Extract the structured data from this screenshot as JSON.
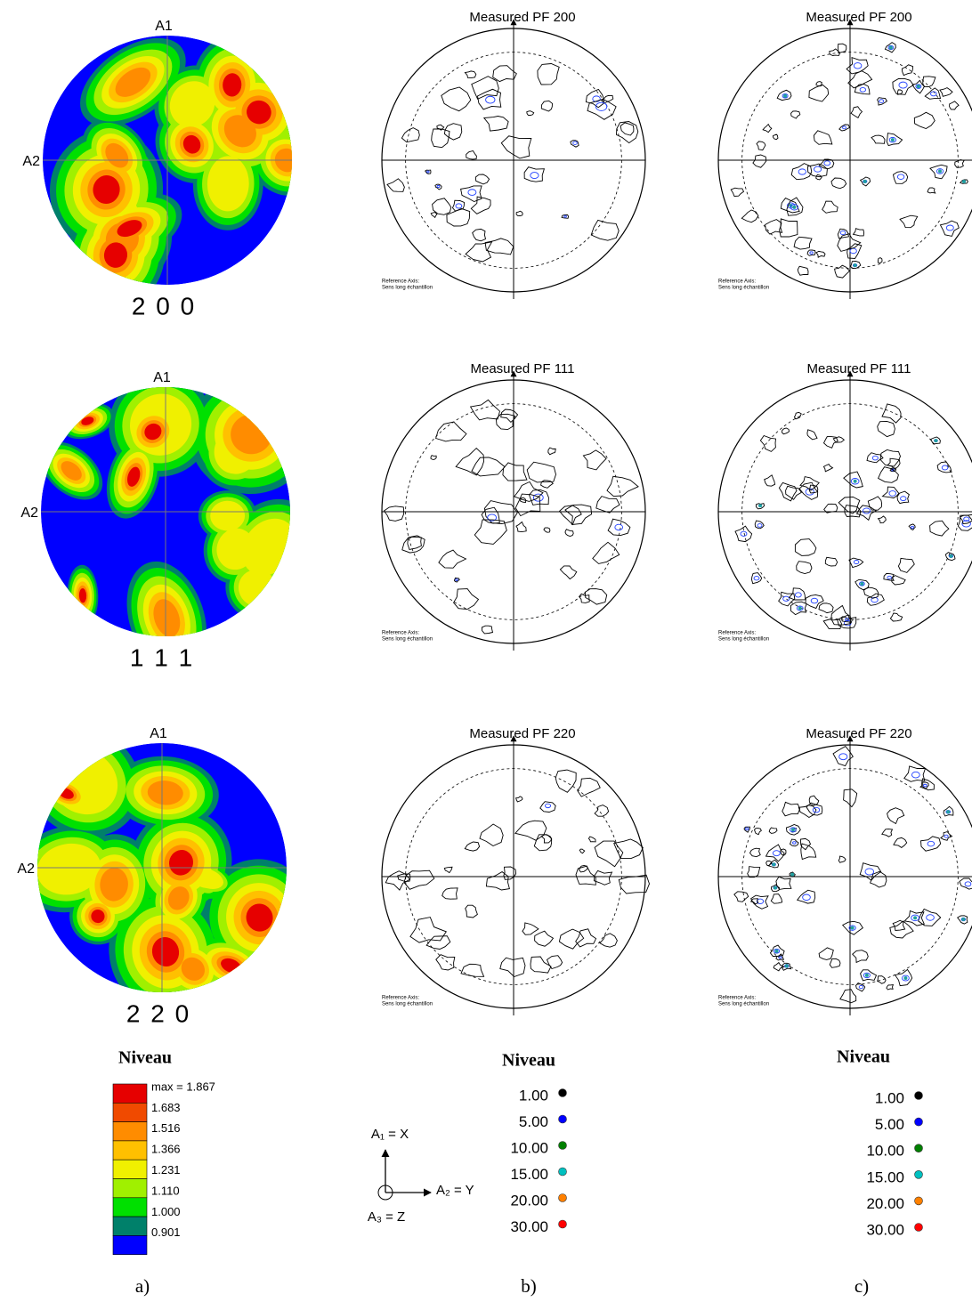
{
  "columns": [
    {
      "caption": "a)",
      "figures": [
        {
          "label": "2 0 0",
          "top_axis": "A1",
          "left_axis": "A2"
        },
        {
          "label": "1 1 1",
          "top_axis": "A1",
          "left_axis": "A2"
        },
        {
          "label": "2 2 0",
          "top_axis": "A1",
          "left_axis": "A2"
        }
      ],
      "legend": {
        "title": "Niveau",
        "levels": [
          "max = 1.867",
          "1.683",
          "1.516",
          "1.366",
          "1.231",
          "1.110",
          "1.000",
          "0.901"
        ],
        "band_colors": [
          "#e60000",
          "#f04a00",
          "#ff8c00",
          "#ffc000",
          "#f0f000",
          "#a0f000",
          "#00e000",
          "#00806a",
          "#0000ff"
        ]
      }
    },
    {
      "caption": "b)",
      "figures": [
        {
          "title": "Measured PF 200",
          "reference_label": "Reference Axis:",
          "reference_text": "Sens long échantillon"
        },
        {
          "title": "Measured PF 111",
          "reference_label": "Reference Axis:",
          "reference_text": "Sens long échantillon"
        },
        {
          "title": "Measured PF 220",
          "reference_label": "Reference Axis:",
          "reference_text": "Sens long échantillon"
        }
      ],
      "axes_key": [
        "A₁ = X",
        "A₂ = Y",
        "A₃ = Z"
      ],
      "legend": {
        "title": "Niveau",
        "levels": [
          {
            "label": "1.00",
            "color": "#000000"
          },
          {
            "label": "5.00",
            "color": "#0000ff"
          },
          {
            "label": "10.00",
            "color": "#008000"
          },
          {
            "label": "15.00",
            "color": "#00c0c0"
          },
          {
            "label": "20.00",
            "color": "#ff8000"
          },
          {
            "label": "30.00",
            "color": "#ff0000"
          }
        ]
      }
    },
    {
      "caption": "c)",
      "figures": [
        {
          "title": "Measured PF 200",
          "reference_label": "Reference Axis:",
          "reference_text": "Sens long échantillon"
        },
        {
          "title": "Measured PF 111",
          "reference_label": "Reference Axis:",
          "reference_text": "Sens long échantillon"
        },
        {
          "title": "Measured PF 220",
          "reference_label": "Reference Axis:",
          "reference_text": "Sens long échantillon"
        }
      ],
      "legend": {
        "title": "Niveau",
        "levels": [
          {
            "label": "1.00",
            "color": "#000000"
          },
          {
            "label": "5.00",
            "color": "#0000ff"
          },
          {
            "label": "10.00",
            "color": "#008000"
          },
          {
            "label": "15.00",
            "color": "#00c0c0"
          },
          {
            "label": "20.00",
            "color": "#ff8000"
          },
          {
            "label": "30.00",
            "color": "#ff0000"
          }
        ]
      }
    }
  ]
}
